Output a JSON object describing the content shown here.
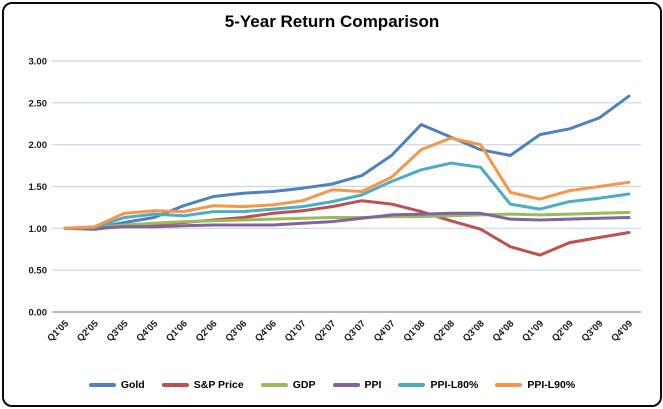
{
  "chart_data": {
    "type": "line",
    "title": "5-Year Return Comparison",
    "categories": [
      "Q1'05",
      "Q2'05",
      "Q3'05",
      "Q4'05",
      "Q1'06",
      "Q2'06",
      "Q3'06",
      "Q4'06",
      "Q1'07",
      "Q2'07",
      "Q3'07",
      "Q4'07",
      "Q1'08",
      "Q2'08",
      "Q3'08",
      "Q4'08",
      "Q1'09",
      "Q2'09",
      "Q3'09",
      "Q4'09"
    ],
    "series": [
      {
        "name": "Gold",
        "color": "#4F81BD",
        "values": [
          1.0,
          1.0,
          1.07,
          1.13,
          1.27,
          1.38,
          1.42,
          1.44,
          1.48,
          1.53,
          1.63,
          1.87,
          2.24,
          2.09,
          1.94,
          1.87,
          2.12,
          2.19,
          2.32,
          2.58
        ]
      },
      {
        "name": "S&P Price",
        "color": "#C0504D",
        "values": [
          1.0,
          0.99,
          1.03,
          1.05,
          1.07,
          1.1,
          1.13,
          1.18,
          1.21,
          1.26,
          1.33,
          1.29,
          1.2,
          1.09,
          0.99,
          0.78,
          0.68,
          0.83,
          0.89,
          0.95
        ]
      },
      {
        "name": "GDP",
        "color": "#9BBB59",
        "values": [
          1.0,
          1.01,
          1.04,
          1.06,
          1.08,
          1.09,
          1.1,
          1.11,
          1.12,
          1.13,
          1.13,
          1.14,
          1.14,
          1.15,
          1.16,
          1.17,
          1.16,
          1.17,
          1.18,
          1.19
        ]
      },
      {
        "name": "PPI",
        "color": "#8064A2",
        "values": [
          1.0,
          1.0,
          1.02,
          1.02,
          1.03,
          1.04,
          1.04,
          1.04,
          1.06,
          1.08,
          1.12,
          1.16,
          1.17,
          1.18,
          1.18,
          1.11,
          1.1,
          1.11,
          1.12,
          1.13
        ]
      },
      {
        "name": "PPI-L80%",
        "color": "#4BACC6",
        "values": [
          1.0,
          1.01,
          1.13,
          1.17,
          1.15,
          1.2,
          1.2,
          1.23,
          1.26,
          1.32,
          1.4,
          1.56,
          1.7,
          1.78,
          1.73,
          1.29,
          1.23,
          1.32,
          1.36,
          1.41
        ]
      },
      {
        "name": "PPI-L90%",
        "color": "#F79646",
        "values": [
          1.0,
          1.02,
          1.18,
          1.21,
          1.2,
          1.27,
          1.26,
          1.28,
          1.33,
          1.46,
          1.44,
          1.61,
          1.94,
          2.08,
          2.0,
          1.43,
          1.35,
          1.45,
          1.5,
          1.55
        ]
      }
    ],
    "ylabel": "",
    "xlabel": "",
    "ylim": [
      0,
      3
    ],
    "ytick_step": 0.5,
    "ytick_labels": [
      "0.00",
      "0.50",
      "1.00",
      "1.50",
      "2.00",
      "2.50",
      "3.00"
    ],
    "grid": "horizontal",
    "gridline_color": "#C9D6EA",
    "axis_line_color": "#A6A6A6",
    "legend_position": "bottom",
    "x_label_rotation": -45
  }
}
